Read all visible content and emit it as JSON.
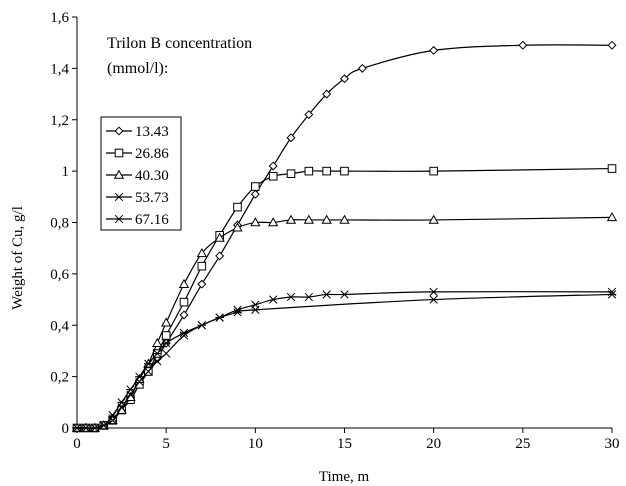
{
  "chart_data": {
    "type": "line",
    "xlabel": "Time, m",
    "ylabel": "Weight of Cu, g/l",
    "xlim": [
      0,
      30
    ],
    "ylim": [
      0,
      1.6
    ],
    "x_ticks": [
      "0",
      "5",
      "10",
      "15",
      "20",
      "25",
      "30"
    ],
    "y_ticks": [
      "0",
      "0,2",
      "0,4",
      "0,6",
      "0,8",
      "1",
      "1,2",
      "1,4",
      "1,6"
    ],
    "grid": false,
    "legend_position": "upper-left",
    "annotation": [
      "Trilon B concentration",
      "(mmol/l):"
    ],
    "series": [
      {
        "name": "13.43",
        "marker": "diamond",
        "points": [
          [
            0,
            0
          ],
          [
            0.5,
            0
          ],
          [
            1,
            0
          ],
          [
            1.5,
            0.01
          ],
          [
            2,
            0.03
          ],
          [
            2.5,
            0.07
          ],
          [
            3,
            0.11
          ],
          [
            3.5,
            0.17
          ],
          [
            4,
            0.22
          ],
          [
            4.5,
            0.27
          ],
          [
            5,
            0.33
          ],
          [
            6,
            0.44
          ],
          [
            7,
            0.56
          ],
          [
            8,
            0.67
          ],
          [
            9,
            0.79
          ],
          [
            10,
            0.91
          ],
          [
            11,
            1.02
          ],
          [
            12,
            1.13
          ],
          [
            13,
            1.22
          ],
          [
            14,
            1.3
          ],
          [
            15,
            1.36
          ],
          [
            16,
            1.4
          ],
          [
            20,
            1.47
          ],
          [
            25,
            1.49
          ],
          [
            30,
            1.49
          ]
        ]
      },
      {
        "name": "26.86",
        "marker": "square",
        "points": [
          [
            0,
            0
          ],
          [
            0.5,
            0
          ],
          [
            1,
            0
          ],
          [
            1.5,
            0.01
          ],
          [
            2,
            0.03
          ],
          [
            2.5,
            0.07
          ],
          [
            3,
            0.11
          ],
          [
            3.5,
            0.17
          ],
          [
            4,
            0.22
          ],
          [
            4.5,
            0.29
          ],
          [
            5,
            0.36
          ],
          [
            6,
            0.49
          ],
          [
            7,
            0.63
          ],
          [
            8,
            0.75
          ],
          [
            9,
            0.86
          ],
          [
            10,
            0.94
          ],
          [
            11,
            0.98
          ],
          [
            12,
            0.99
          ],
          [
            13,
            1.0
          ],
          [
            14,
            1.0
          ],
          [
            15,
            1.0
          ],
          [
            20,
            1.0
          ],
          [
            30,
            1.01
          ]
        ]
      },
      {
        "name": "40.30",
        "marker": "triangle",
        "points": [
          [
            0,
            0
          ],
          [
            0.5,
            0
          ],
          [
            1,
            0
          ],
          [
            1.5,
            0.01
          ],
          [
            2,
            0.03
          ],
          [
            2.5,
            0.07
          ],
          [
            3,
            0.12
          ],
          [
            3.5,
            0.19
          ],
          [
            4,
            0.25
          ],
          [
            4.5,
            0.33
          ],
          [
            5,
            0.41
          ],
          [
            6,
            0.56
          ],
          [
            7,
            0.68
          ],
          [
            8,
            0.74
          ],
          [
            9,
            0.78
          ],
          [
            10,
            0.8
          ],
          [
            11,
            0.8
          ],
          [
            12,
            0.81
          ],
          [
            13,
            0.81
          ],
          [
            14,
            0.81
          ],
          [
            15,
            0.81
          ],
          [
            20,
            0.81
          ],
          [
            30,
            0.82
          ]
        ]
      },
      {
        "name": "53.73",
        "marker": "x",
        "points": [
          [
            0,
            0
          ],
          [
            0.5,
            0
          ],
          [
            1,
            0
          ],
          [
            1.5,
            0.01
          ],
          [
            2,
            0.03
          ],
          [
            2.5,
            0.08
          ],
          [
            3,
            0.13
          ],
          [
            3.5,
            0.18
          ],
          [
            4,
            0.22
          ],
          [
            4.5,
            0.26
          ],
          [
            5,
            0.29
          ],
          [
            6,
            0.36
          ],
          [
            7,
            0.4
          ],
          [
            8,
            0.43
          ],
          [
            9,
            0.46
          ],
          [
            10,
            0.48
          ],
          [
            11,
            0.5
          ],
          [
            12,
            0.51
          ],
          [
            13,
            0.51
          ],
          [
            14,
            0.52
          ],
          [
            15,
            0.52
          ],
          [
            20,
            0.53
          ],
          [
            30,
            0.53
          ]
        ]
      },
      {
        "name": "67.16",
        "marker": "asterisk",
        "points": [
          [
            0,
            0
          ],
          [
            0.5,
            0
          ],
          [
            1,
            0
          ],
          [
            1.5,
            0.01
          ],
          [
            2,
            0.05
          ],
          [
            2.5,
            0.1
          ],
          [
            3,
            0.15
          ],
          [
            3.5,
            0.2
          ],
          [
            4,
            0.25
          ],
          [
            4.5,
            0.29
          ],
          [
            5,
            0.33
          ],
          [
            6,
            0.37
          ],
          [
            7,
            0.4
          ],
          [
            8,
            0.43
          ],
          [
            9,
            0.45
          ],
          [
            10,
            0.46
          ],
          [
            20,
            0.5
          ],
          [
            30,
            0.52
          ]
        ]
      }
    ]
  }
}
